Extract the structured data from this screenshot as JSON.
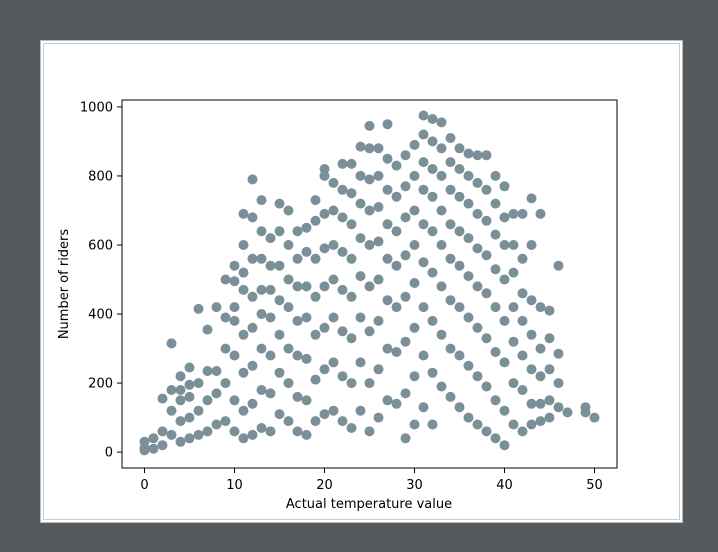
{
  "colors": {
    "background": "#545a5e",
    "figure": "#ffffff",
    "marker": "#7a8f98"
  },
  "chart_data": {
    "type": "scatter",
    "title": "",
    "xlabel": "Actual temperature value",
    "ylabel": "Number of riders",
    "xlim": [
      -2.5,
      52.5
    ],
    "ylim": [
      -46,
      1020
    ],
    "xticks": [
      0,
      10,
      20,
      30,
      40,
      50
    ],
    "yticks": [
      0,
      200,
      400,
      600,
      800,
      1000
    ],
    "grid": false,
    "legend": "none",
    "series": [
      {
        "color": "#7a8f98",
        "points": [
          [
            0,
            30
          ],
          [
            0,
            12
          ],
          [
            0,
            5
          ],
          [
            1,
            40
          ],
          [
            1,
            10
          ],
          [
            2,
            155
          ],
          [
            2,
            60
          ],
          [
            2,
            20
          ],
          [
            3,
            315
          ],
          [
            3,
            180
          ],
          [
            3,
            120
          ],
          [
            3,
            50
          ],
          [
            4,
            220
          ],
          [
            4,
            180
          ],
          [
            4,
            150
          ],
          [
            4,
            90
          ],
          [
            4,
            30
          ],
          [
            5,
            245
          ],
          [
            5,
            195
          ],
          [
            5,
            160
          ],
          [
            5,
            100
          ],
          [
            5,
            40
          ],
          [
            6,
            415
          ],
          [
            6,
            200
          ],
          [
            6,
            120
          ],
          [
            6,
            50
          ],
          [
            7,
            355
          ],
          [
            7,
            235
          ],
          [
            7,
            150
          ],
          [
            7,
            60
          ],
          [
            8,
            420
          ],
          [
            8,
            235
          ],
          [
            8,
            170
          ],
          [
            8,
            80
          ],
          [
            9,
            500
          ],
          [
            9,
            390
          ],
          [
            9,
            300
          ],
          [
            9,
            200
          ],
          [
            9,
            90
          ],
          [
            10,
            540
          ],
          [
            10,
            495
          ],
          [
            10,
            420
          ],
          [
            10,
            380
          ],
          [
            10,
            280
          ],
          [
            10,
            150
          ],
          [
            10,
            60
          ],
          [
            11,
            690
          ],
          [
            11,
            600
          ],
          [
            11,
            520
          ],
          [
            11,
            470
          ],
          [
            11,
            340
          ],
          [
            11,
            230
          ],
          [
            11,
            120
          ],
          [
            11,
            40
          ],
          [
            12,
            790
          ],
          [
            12,
            680
          ],
          [
            12,
            560
          ],
          [
            12,
            450
          ],
          [
            12,
            360
          ],
          [
            12,
            250
          ],
          [
            12,
            140
          ],
          [
            12,
            50
          ],
          [
            13,
            730
          ],
          [
            13,
            640
          ],
          [
            13,
            560
          ],
          [
            13,
            470
          ],
          [
            13,
            400
          ],
          [
            13,
            300
          ],
          [
            13,
            180
          ],
          [
            13,
            70
          ],
          [
            14,
            620
          ],
          [
            14,
            540
          ],
          [
            14,
            470
          ],
          [
            14,
            390
          ],
          [
            14,
            280
          ],
          [
            14,
            170
          ],
          [
            14,
            60
          ],
          [
            15,
            720
          ],
          [
            15,
            640
          ],
          [
            15,
            540
          ],
          [
            15,
            440
          ],
          [
            15,
            340
          ],
          [
            15,
            230
          ],
          [
            15,
            110
          ],
          [
            16,
            700
          ],
          [
            16,
            600
          ],
          [
            16,
            500
          ],
          [
            16,
            420
          ],
          [
            16,
            300
          ],
          [
            16,
            200
          ],
          [
            16,
            90
          ],
          [
            17,
            640
          ],
          [
            17,
            560
          ],
          [
            17,
            480
          ],
          [
            17,
            380
          ],
          [
            17,
            280
          ],
          [
            17,
            160
          ],
          [
            17,
            60
          ],
          [
            18,
            650
          ],
          [
            18,
            580
          ],
          [
            18,
            480
          ],
          [
            18,
            390
          ],
          [
            18,
            270
          ],
          [
            18,
            150
          ],
          [
            18,
            50
          ],
          [
            19,
            730
          ],
          [
            19,
            670
          ],
          [
            19,
            560
          ],
          [
            19,
            450
          ],
          [
            19,
            340
          ],
          [
            19,
            210
          ],
          [
            19,
            90
          ],
          [
            20,
            820
          ],
          [
            20,
            800
          ],
          [
            20,
            690
          ],
          [
            20,
            590
          ],
          [
            20,
            480
          ],
          [
            20,
            360
          ],
          [
            20,
            240
          ],
          [
            20,
            110
          ],
          [
            21,
            780
          ],
          [
            21,
            700
          ],
          [
            21,
            600
          ],
          [
            21,
            500
          ],
          [
            21,
            390
          ],
          [
            21,
            260
          ],
          [
            21,
            120
          ],
          [
            22,
            835
          ],
          [
            22,
            760
          ],
          [
            22,
            680
          ],
          [
            22,
            580
          ],
          [
            22,
            470
          ],
          [
            22,
            350
          ],
          [
            22,
            220
          ],
          [
            22,
            90
          ],
          [
            23,
            835
          ],
          [
            23,
            750
          ],
          [
            23,
            660
          ],
          [
            23,
            560
          ],
          [
            23,
            450
          ],
          [
            23,
            330
          ],
          [
            23,
            200
          ],
          [
            23,
            70
          ],
          [
            24,
            885
          ],
          [
            24,
            800
          ],
          [
            24,
            720
          ],
          [
            24,
            620
          ],
          [
            24,
            510
          ],
          [
            24,
            390
          ],
          [
            24,
            260
          ],
          [
            24,
            120
          ],
          [
            25,
            945
          ],
          [
            25,
            880
          ],
          [
            25,
            790
          ],
          [
            25,
            700
          ],
          [
            25,
            600
          ],
          [
            25,
            480
          ],
          [
            25,
            350
          ],
          [
            25,
            200
          ],
          [
            25,
            60
          ],
          [
            26,
            880
          ],
          [
            26,
            800
          ],
          [
            26,
            710
          ],
          [
            26,
            610
          ],
          [
            26,
            500
          ],
          [
            26,
            380
          ],
          [
            26,
            240
          ],
          [
            26,
            100
          ],
          [
            27,
            950
          ],
          [
            27,
            850
          ],
          [
            27,
            760
          ],
          [
            27,
            660
          ],
          [
            27,
            560
          ],
          [
            27,
            440
          ],
          [
            27,
            300
          ],
          [
            27,
            150
          ],
          [
            28,
            830
          ],
          [
            28,
            740
          ],
          [
            28,
            640
          ],
          [
            28,
            540
          ],
          [
            28,
            420
          ],
          [
            28,
            290
          ],
          [
            28,
            140
          ],
          [
            29,
            860
          ],
          [
            29,
            770
          ],
          [
            29,
            680
          ],
          [
            29,
            570
          ],
          [
            29,
            450
          ],
          [
            29,
            320
          ],
          [
            29,
            170
          ],
          [
            29,
            40
          ],
          [
            30,
            890
          ],
          [
            30,
            800
          ],
          [
            30,
            700
          ],
          [
            30,
            600
          ],
          [
            30,
            490
          ],
          [
            30,
            360
          ],
          [
            30,
            220
          ],
          [
            30,
            80
          ],
          [
            31,
            975
          ],
          [
            31,
            920
          ],
          [
            31,
            840
          ],
          [
            31,
            760
          ],
          [
            31,
            660
          ],
          [
            31,
            550
          ],
          [
            31,
            420
          ],
          [
            31,
            280
          ],
          [
            31,
            130
          ],
          [
            32,
            965
          ],
          [
            32,
            900
          ],
          [
            32,
            820
          ],
          [
            32,
            740
          ],
          [
            32,
            640
          ],
          [
            32,
            520
          ],
          [
            32,
            380
          ],
          [
            32,
            230
          ],
          [
            32,
            80
          ],
          [
            33,
            955
          ],
          [
            33,
            880
          ],
          [
            33,
            800
          ],
          [
            33,
            700
          ],
          [
            33,
            600
          ],
          [
            33,
            480
          ],
          [
            33,
            340
          ],
          [
            33,
            190
          ],
          [
            34,
            910
          ],
          [
            34,
            840
          ],
          [
            34,
            760
          ],
          [
            34,
            660
          ],
          [
            34,
            560
          ],
          [
            34,
            440
          ],
          [
            34,
            300
          ],
          [
            34,
            160
          ],
          [
            35,
            880
          ],
          [
            35,
            820
          ],
          [
            35,
            740
          ],
          [
            35,
            640
          ],
          [
            35,
            540
          ],
          [
            35,
            420
          ],
          [
            35,
            280
          ],
          [
            35,
            130
          ],
          [
            36,
            865
          ],
          [
            36,
            800
          ],
          [
            36,
            720
          ],
          [
            36,
            620
          ],
          [
            36,
            510
          ],
          [
            36,
            390
          ],
          [
            36,
            250
          ],
          [
            36,
            100
          ],
          [
            37,
            860
          ],
          [
            37,
            780
          ],
          [
            37,
            690
          ],
          [
            37,
            590
          ],
          [
            37,
            480
          ],
          [
            37,
            360
          ],
          [
            37,
            220
          ],
          [
            37,
            80
          ],
          [
            38,
            860
          ],
          [
            38,
            760
          ],
          [
            38,
            670
          ],
          [
            38,
            570
          ],
          [
            38,
            460
          ],
          [
            38,
            330
          ],
          [
            38,
            190
          ],
          [
            38,
            60
          ],
          [
            39,
            800
          ],
          [
            39,
            720
          ],
          [
            39,
            630
          ],
          [
            39,
            530
          ],
          [
            39,
            420
          ],
          [
            39,
            290
          ],
          [
            39,
            150
          ],
          [
            39,
            40
          ],
          [
            40,
            770
          ],
          [
            40,
            680
          ],
          [
            40,
            600
          ],
          [
            40,
            500
          ],
          [
            40,
            380
          ],
          [
            40,
            260
          ],
          [
            40,
            120
          ],
          [
            40,
            20
          ],
          [
            41,
            690
          ],
          [
            41,
            600
          ],
          [
            41,
            520
          ],
          [
            41,
            420
          ],
          [
            41,
            320
          ],
          [
            41,
            200
          ],
          [
            41,
            80
          ],
          [
            42,
            690
          ],
          [
            42,
            560
          ],
          [
            42,
            460
          ],
          [
            42,
            380
          ],
          [
            42,
            280
          ],
          [
            42,
            180
          ],
          [
            42,
            60
          ],
          [
            43,
            735
          ],
          [
            43,
            600
          ],
          [
            43,
            440
          ],
          [
            43,
            340
          ],
          [
            43,
            240
          ],
          [
            43,
            140
          ],
          [
            43,
            80
          ],
          [
            44,
            690
          ],
          [
            44,
            420
          ],
          [
            44,
            300
          ],
          [
            44,
            220
          ],
          [
            44,
            140
          ],
          [
            44,
            90
          ],
          [
            45,
            410
          ],
          [
            45,
            330
          ],
          [
            45,
            240
          ],
          [
            45,
            150
          ],
          [
            45,
            100
          ],
          [
            46,
            540
          ],
          [
            46,
            285
          ],
          [
            46,
            200
          ],
          [
            46,
            130
          ],
          [
            47,
            115
          ],
          [
            49,
            130
          ],
          [
            49,
            115
          ],
          [
            50,
            100
          ]
        ]
      }
    ]
  }
}
